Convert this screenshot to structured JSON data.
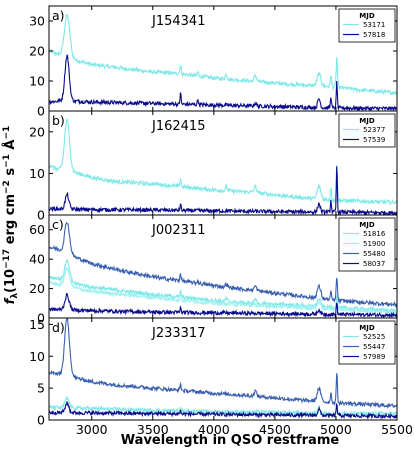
{
  "chart_data": {
    "type": "line",
    "xlabel": "Wavelength in QSO restframe",
    "ylabel": "f_λ (10⁻¹⁷ erg cm⁻² s⁻¹ Å⁻¹)",
    "ylabel_parts": {
      "main": "f",
      "sub": "λ",
      "open": "(10",
      "exp1": "−17",
      "unit1": " erg cm",
      "exp2": "−2",
      "unit2": " s",
      "exp3": "−1",
      "unit3": " Å",
      "exp4": "−1"
    },
    "xlim": [
      2650,
      5500
    ],
    "xticks": [
      3000,
      3500,
      4000,
      4500,
      5000,
      5500
    ],
    "legend_title": "MJD",
    "legend_position": "top-right",
    "grid": false,
    "panels": [
      {
        "letter": "a)",
        "name": "J154341",
        "ylim": [
          0,
          35
        ],
        "yticks": [
          0,
          10,
          20,
          30
        ],
        "series": [
          {
            "name": "53171",
            "color": "#7fe8e8",
            "base": [
              [
                2650,
                20
              ],
              [
                2720,
                19
              ],
              [
                2780,
                18
              ],
              [
                3000,
                15.5
              ],
              [
                3200,
                14.5
              ],
              [
                3500,
                13
              ],
              [
                3700,
                12.5
              ],
              [
                4000,
                11
              ],
              [
                4300,
                10
              ],
              [
                4600,
                9
              ],
              [
                4800,
                8.5
              ],
              [
                5000,
                8
              ],
              [
                5200,
                7
              ],
              [
                5500,
                6
              ]
            ],
            "lines": [
              [
                2798,
                14,
                45
              ],
              [
                3727,
                3,
                10
              ],
              [
                3869,
                1.5,
                10
              ],
              [
                4102,
                1.5,
                15
              ],
              [
                4340,
                2,
                20
              ],
              [
                4861,
                4,
                30
              ],
              [
                4959,
                4,
                10
              ],
              [
                5007,
                10,
                10
              ]
            ]
          },
          {
            "name": "57818",
            "color": "#0a0a8c",
            "base": [
              [
                2650,
                3
              ],
              [
                2780,
                3.5
              ],
              [
                3000,
                3
              ],
              [
                3500,
                2.5
              ],
              [
                4000,
                2
              ],
              [
                4500,
                1.5
              ],
              [
                5000,
                1
              ],
              [
                5500,
                0.8
              ]
            ],
            "lines": [
              [
                2798,
                15,
                35
              ],
              [
                3727,
                4,
                8
              ],
              [
                3869,
                2,
                8
              ],
              [
                4340,
                1,
                15
              ],
              [
                4861,
                3,
                20
              ],
              [
                4959,
                4,
                8
              ],
              [
                5007,
                9,
                8
              ]
            ]
          }
        ]
      },
      {
        "letter": "b)",
        "name": "J162415",
        "ylim": [
          0,
          25
        ],
        "yticks": [
          0,
          10,
          20
        ],
        "series": [
          {
            "name": "52377",
            "color": "#7fe8e8",
            "base": [
              [
                2650,
                12
              ],
              [
                2720,
                11
              ],
              [
                2780,
                11
              ],
              [
                3000,
                9
              ],
              [
                3200,
                8
              ],
              [
                3500,
                7.5
              ],
              [
                4000,
                6
              ],
              [
                4300,
                5.5
              ],
              [
                4600,
                4.5
              ],
              [
                4800,
                4
              ],
              [
                5000,
                3.5
              ],
              [
                5500,
                3
              ]
            ],
            "lines": [
              [
                2798,
                12,
                40
              ],
              [
                3727,
                2,
                10
              ],
              [
                4102,
                1,
                15
              ],
              [
                4340,
                1.5,
                20
              ],
              [
                4861,
                3,
                30
              ],
              [
                4959,
                3,
                10
              ],
              [
                5007,
                9,
                10
              ]
            ]
          },
          {
            "name": "57539",
            "color": "#0a0a8c",
            "base": [
              [
                2650,
                1.5
              ],
              [
                3000,
                1.3
              ],
              [
                3500,
                1.2
              ],
              [
                4000,
                1
              ],
              [
                4500,
                0.8
              ],
              [
                5000,
                0.7
              ],
              [
                5500,
                0.5
              ]
            ],
            "lines": [
              [
                2798,
                3.5,
                30
              ],
              [
                3727,
                1.5,
                8
              ],
              [
                4861,
                2,
                20
              ],
              [
                4959,
                3,
                8
              ],
              [
                5007,
                11,
                8
              ]
            ]
          }
        ]
      },
      {
        "letter": "c)",
        "name": "J002311",
        "ylim": [
          0,
          70
        ],
        "yticks": [
          0,
          20,
          40,
          60
        ],
        "series": [
          {
            "name": "51816",
            "color": "#7fe8e8",
            "base": [
              [
                2650,
                28
              ],
              [
                2720,
                27
              ],
              [
                2780,
                25
              ],
              [
                3000,
                21
              ],
              [
                3200,
                19
              ],
              [
                3500,
                16
              ],
              [
                4000,
                12
              ],
              [
                4300,
                10
              ],
              [
                4600,
                9
              ],
              [
                4800,
                8
              ],
              [
                5000,
                7
              ],
              [
                5500,
                5
              ]
            ],
            "lines": [
              [
                2798,
                14,
                40
              ],
              [
                3727,
                4,
                10
              ],
              [
                4102,
                2,
                15
              ],
              [
                4340,
                3,
                20
              ],
              [
                4861,
                5,
                30
              ],
              [
                5007,
                8,
                10
              ]
            ]
          },
          {
            "name": "51900",
            "color": "#a0f0f0",
            "base": [
              [
                2650,
                24
              ],
              [
                2780,
                22
              ],
              [
                3000,
                18
              ],
              [
                3500,
                14
              ],
              [
                4000,
                10
              ],
              [
                4500,
                8
              ],
              [
                5000,
                6
              ],
              [
                5500,
                4
              ]
            ],
            "lines": [
              [
                2798,
                12,
                40
              ],
              [
                3727,
                3,
                10
              ],
              [
                4861,
                4,
                30
              ],
              [
                5007,
                6,
                10
              ]
            ]
          },
          {
            "name": "55480",
            "color": "#3a5fb0",
            "base": [
              [
                2650,
                48
              ],
              [
                2720,
                47
              ],
              [
                2780,
                44
              ],
              [
                3000,
                37
              ],
              [
                3200,
                33
              ],
              [
                3500,
                28
              ],
              [
                4000,
                22
              ],
              [
                4300,
                19
              ],
              [
                4600,
                16
              ],
              [
                4800,
                14
              ],
              [
                5000,
                12
              ],
              [
                5500,
                9
              ]
            ],
            "lines": [
              [
                2798,
                22,
                40
              ],
              [
                3727,
                5,
                10
              ],
              [
                3869,
                2,
                10
              ],
              [
                4102,
                2,
                15
              ],
              [
                4340,
                3,
                20
              ],
              [
                4861,
                8,
                30
              ],
              [
                4959,
                5,
                10
              ],
              [
                5007,
                16,
                10
              ]
            ]
          },
          {
            "name": "58037",
            "color": "#0a0a8c",
            "base": [
              [
                2650,
                6
              ],
              [
                3000,
                5
              ],
              [
                3500,
                4
              ],
              [
                4000,
                3.5
              ],
              [
                4500,
                3
              ],
              [
                5000,
                2.5
              ],
              [
                5500,
                2
              ]
            ],
            "lines": [
              [
                2798,
                10,
                35
              ],
              [
                3727,
                3,
                8
              ],
              [
                4861,
                3,
                20
              ],
              [
                5007,
                8,
                8
              ]
            ]
          }
        ]
      },
      {
        "letter": "d)",
        "name": "J233317",
        "ylim": [
          0,
          16
        ],
        "yticks": [
          0,
          5,
          10,
          15
        ],
        "series": [
          {
            "name": "52525",
            "color": "#7fe8e8",
            "base": [
              [
                2650,
                2
              ],
              [
                3000,
                1.8
              ],
              [
                3500,
                1.5
              ],
              [
                4000,
                1.3
              ],
              [
                4500,
                1.2
              ],
              [
                5000,
                1
              ],
              [
                5500,
                1
              ]
            ],
            "lines": [
              [
                2798,
                1.5,
                35
              ],
              [
                3727,
                0.8,
                10
              ],
              [
                4861,
                1,
                20
              ],
              [
                5007,
                1.5,
                10
              ]
            ]
          },
          {
            "name": "55447",
            "color": "#3a5fb0",
            "base": [
              [
                2650,
                7.5
              ],
              [
                2720,
                7.2
              ],
              [
                2780,
                7
              ],
              [
                3000,
                6
              ],
              [
                3200,
                5.5
              ],
              [
                3500,
                5
              ],
              [
                4000,
                4.2
              ],
              [
                4300,
                3.8
              ],
              [
                4600,
                3.3
              ],
              [
                4800,
                3
              ],
              [
                5000,
                2.7
              ],
              [
                5500,
                2.2
              ]
            ],
            "lines": [
              [
                2798,
                9,
                40
              ],
              [
                3727,
                1,
                10
              ],
              [
                4340,
                0.8,
                20
              ],
              [
                4861,
                2,
                30
              ],
              [
                4959,
                1.5,
                10
              ],
              [
                5007,
                4.5,
                10
              ]
            ]
          },
          {
            "name": "57989",
            "color": "#0a0a8c",
            "base": [
              [
                2650,
                1.2
              ],
              [
                3000,
                1.1
              ],
              [
                3500,
                1
              ],
              [
                4000,
                0.9
              ],
              [
                4500,
                0.8
              ],
              [
                5000,
                0.7
              ],
              [
                5500,
                0.6
              ]
            ],
            "lines": [
              [
                2798,
                1.5,
                30
              ],
              [
                3727,
                0.5,
                8
              ],
              [
                4861,
                1,
                20
              ],
              [
                5007,
                2,
                8
              ]
            ]
          }
        ]
      }
    ]
  }
}
